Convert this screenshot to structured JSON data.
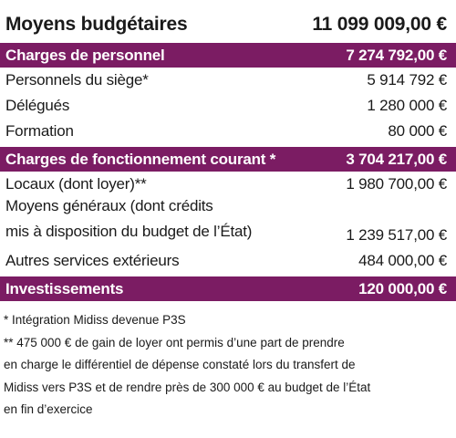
{
  "header": {
    "title": "Moyens budgétaires",
    "amount": "11 099 009,00 €"
  },
  "sections": [
    {
      "heading": {
        "label": "Charges de personnel",
        "amount": "7 274 792,00 €"
      },
      "items": [
        {
          "label": [
            "Personnels du siège*"
          ],
          "amount": "5 914 792 €"
        },
        {
          "label": [
            "Délégués"
          ],
          "amount": "1 280 000 €"
        },
        {
          "label": [
            "Formation"
          ],
          "amount": "80 000 €"
        }
      ]
    },
    {
      "heading": {
        "label": "Charges de fonctionnement courant *",
        "amount": "3 704 217,00 €"
      },
      "items": [
        {
          "label": [
            "Locaux (dont loyer)**"
          ],
          "amount": "1 980 700,00 €"
        },
        {
          "label": [
            "Moyens généraux (dont crédits",
            "mis à disposition du budget de l’État)"
          ],
          "amount": "1 239 517,00 €"
        },
        {
          "label": [
            "Autres services extérieurs"
          ],
          "amount": "484 000,00 €"
        }
      ]
    },
    {
      "heading": {
        "label": "Investissements",
        "amount": "120 000,00 €"
      },
      "items": []
    }
  ],
  "footnotes": [
    [
      "* Intégration Midiss devenue P3S"
    ],
    [
      "** 475 000 € de gain de loyer ont permis d’une part de prendre",
      "en charge le différentiel de dépense constaté lors du transfert de",
      "Midiss vers P3S et de rendre près de 300 000 € au budget de l’État",
      "en fin d’exercice"
    ]
  ]
}
